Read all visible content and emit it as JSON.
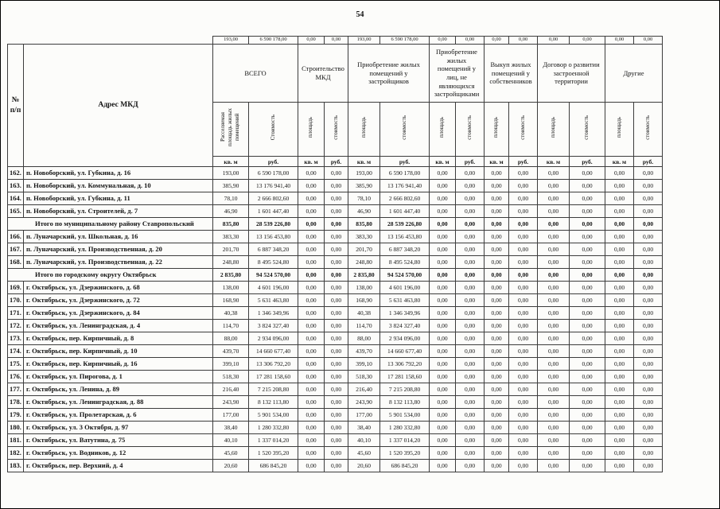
{
  "page": {
    "number": "54"
  },
  "table": {
    "header": {
      "col_num": "№\nп/п",
      "col_address": "Адрес МКД",
      "groups": [
        {
          "label": "ВСЕГО",
          "sub": [
            "Расселяемая площадь жилых помещений",
            "Стоимость"
          ]
        },
        {
          "label": "Строительство МКД",
          "sub": [
            "площадь",
            "стоимость"
          ]
        },
        {
          "label": "Приобретение жилых помещений у застройщиков",
          "sub": [
            "площадь",
            "стоимость"
          ]
        },
        {
          "label": "Приобретение жилых помещений у лиц, не являющихся застройщиками",
          "sub": [
            "площадь",
            "стоимость"
          ]
        },
        {
          "label": "Выкуп жилых помещений у собственников",
          "sub": [
            "площадь",
            "стоимость"
          ]
        },
        {
          "label": "Договор о развитии застроенной территории",
          "sub": [
            "площадь",
            "стоимость"
          ]
        },
        {
          "label": "Другие",
          "sub": [
            "площадь",
            "стоимость"
          ]
        }
      ],
      "units": {
        "area": "кв. м",
        "cost": "руб."
      }
    },
    "carryover_row": {
      "values": [
        "193,00",
        "6 590 178,00",
        "0,00",
        "0,00",
        "193,00",
        "6 590 178,00",
        "0,00",
        "0,00",
        "0,00",
        "0,00",
        "0,00",
        "0,00",
        "0,00",
        "0,00"
      ]
    },
    "rows": [
      {
        "kind": "data",
        "num": "162.",
        "address": "п. Новоборский, ул. Губкина, д. 16",
        "values": [
          "193,00",
          "6 590 178,00",
          "0,00",
          "0,00",
          "193,00",
          "6 590 178,00",
          "0,00",
          "0,00",
          "0,00",
          "0,00",
          "0,00",
          "0,00",
          "0,00",
          "0,00"
        ]
      },
      {
        "kind": "data",
        "num": "163.",
        "address": "п. Новоборский, ул. Коммунальная, д. 10",
        "values": [
          "385,90",
          "13 176 941,40",
          "0,00",
          "0,00",
          "385,90",
          "13 176 941,40",
          "0,00",
          "0,00",
          "0,00",
          "0,00",
          "0,00",
          "0,00",
          "0,00",
          "0,00"
        ]
      },
      {
        "kind": "data",
        "num": "164.",
        "address": "п. Новоборский, ул. Губкина, д. 11",
        "values": [
          "78,10",
          "2 666 802,60",
          "0,00",
          "0,00",
          "78,10",
          "2 666 802,60",
          "0,00",
          "0,00",
          "0,00",
          "0,00",
          "0,00",
          "0,00",
          "0,00",
          "0,00"
        ]
      },
      {
        "kind": "data",
        "num": "165.",
        "address": "п. Новоборский, ул. Строителей, д. 7",
        "values": [
          "46,90",
          "1 601 447,40",
          "0,00",
          "0,00",
          "46,90",
          "1 601 447,40",
          "0,00",
          "0,00",
          "0,00",
          "0,00",
          "0,00",
          "0,00",
          "0,00",
          "0,00"
        ]
      },
      {
        "kind": "total",
        "label": "Итого по муниципальному району Ставропольский",
        "values": [
          "835,80",
          "28 539 226,80",
          "0,00",
          "0,00",
          "835,80",
          "28 539 226,80",
          "0,00",
          "0,00",
          "0,00",
          "0,00",
          "0,00",
          "0,00",
          "0,00",
          "0,00"
        ]
      },
      {
        "kind": "data",
        "num": "166.",
        "address": "п. Луначарский, ул. Школьная, д. 16",
        "values": [
          "383,30",
          "13 156 453,80",
          "0,00",
          "0,00",
          "383,30",
          "13 156 453,80",
          "0,00",
          "0,00",
          "0,00",
          "0,00",
          "0,00",
          "0,00",
          "0,00",
          "0,00"
        ]
      },
      {
        "kind": "data",
        "num": "167.",
        "address": "п. Луначарский, ул. Производственная, д. 20",
        "values": [
          "201,70",
          "6 887 348,20",
          "0,00",
          "0,00",
          "201,70",
          "6 887 348,20",
          "0,00",
          "0,00",
          "0,00",
          "0,00",
          "0,00",
          "0,00",
          "0,00",
          "0,00"
        ]
      },
      {
        "kind": "data",
        "num": "168.",
        "address": "п. Луначарский, ул. Производственная, д. 22",
        "values": [
          "248,80",
          "8 495 524,80",
          "0,00",
          "0,00",
          "248,80",
          "8 495 524,80",
          "0,00",
          "0,00",
          "0,00",
          "0,00",
          "0,00",
          "0,00",
          "0,00",
          "0,00"
        ]
      },
      {
        "kind": "total",
        "label": "Итого по городскому округу Октябрьск",
        "values": [
          "2 835,80",
          "94 524 570,00",
          "0,00",
          "0,00",
          "2 835,80",
          "94 524 570,00",
          "0,00",
          "0,00",
          "0,00",
          "0,00",
          "0,00",
          "0,00",
          "0,00",
          "0,00"
        ]
      },
      {
        "kind": "data",
        "num": "169.",
        "address": "г. Октябрьск, ул. Дзержинского, д. 68",
        "values": [
          "138,00",
          "4 601 196,00",
          "0,00",
          "0,00",
          "138,00",
          "4 601 196,00",
          "0,00",
          "0,00",
          "0,00",
          "0,00",
          "0,00",
          "0,00",
          "0,00",
          "0,00"
        ]
      },
      {
        "kind": "data",
        "num": "170.",
        "address": "г. Октябрьск, ул. Дзержинского, д. 72",
        "values": [
          "168,90",
          "5 631 463,80",
          "0,00",
          "0,00",
          "168,90",
          "5 631 463,80",
          "0,00",
          "0,00",
          "0,00",
          "0,00",
          "0,00",
          "0,00",
          "0,00",
          "0,00"
        ]
      },
      {
        "kind": "data",
        "num": "171.",
        "address": "г. Октябрьск, ул. Дзержинского, д. 84",
        "values": [
          "40,38",
          "1 346 349,96",
          "0,00",
          "0,00",
          "40,38",
          "1 346 349,96",
          "0,00",
          "0,00",
          "0,00",
          "0,00",
          "0,00",
          "0,00",
          "0,00",
          "0,00"
        ]
      },
      {
        "kind": "data",
        "num": "172.",
        "address": "г. Октябрьск, ул. Ленинградская, д. 4",
        "values": [
          "114,70",
          "3 824 327,40",
          "0,00",
          "0,00",
          "114,70",
          "3 824 327,40",
          "0,00",
          "0,00",
          "0,00",
          "0,00",
          "0,00",
          "0,00",
          "0,00",
          "0,00"
        ]
      },
      {
        "kind": "data",
        "num": "173.",
        "address": "г. Октябрьск, пер. Кирпичный, д. 8",
        "values": [
          "88,00",
          "2 934 096,00",
          "0,00",
          "0,00",
          "88,00",
          "2 934 096,00",
          "0,00",
          "0,00",
          "0,00",
          "0,00",
          "0,00",
          "0,00",
          "0,00",
          "0,00"
        ]
      },
      {
        "kind": "data",
        "num": "174.",
        "address": "г. Октябрьск, пер. Кирпичный, д. 10",
        "values": [
          "439,70",
          "14 660 677,40",
          "0,00",
          "0,00",
          "439,70",
          "14 660 677,40",
          "0,00",
          "0,00",
          "0,00",
          "0,00",
          "0,00",
          "0,00",
          "0,00",
          "0,00"
        ]
      },
      {
        "kind": "data",
        "num": "175.",
        "address": "г. Октябрьск, пер. Кирпичный, д. 16",
        "values": [
          "399,10",
          "13 306 792,20",
          "0,00",
          "0,00",
          "399,10",
          "13 306 792,20",
          "0,00",
          "0,00",
          "0,00",
          "0,00",
          "0,00",
          "0,00",
          "0,00",
          "0,00"
        ]
      },
      {
        "kind": "data",
        "num": "176.",
        "address": "г. Октябрьск, ул. Пирогова, д. 1",
        "values": [
          "518,30",
          "17 281 158,60",
          "0,00",
          "0,00",
          "518,30",
          "17 281 158,60",
          "0,00",
          "0,00",
          "0,00",
          "0,00",
          "0,00",
          "0,00",
          "0,00",
          "0,00"
        ]
      },
      {
        "kind": "data",
        "num": "177.",
        "address": "г. Октябрьск, ул. Ленина, д. 89",
        "values": [
          "216,40",
          "7 215 208,80",
          "0,00",
          "0,00",
          "216,40",
          "7 215 208,80",
          "0,00",
          "0,00",
          "0,00",
          "0,00",
          "0,00",
          "0,00",
          "0,00",
          "0,00"
        ]
      },
      {
        "kind": "data",
        "num": "178.",
        "address": "г. Октябрьск, ул. Ленинградская, д. 88",
        "values": [
          "243,90",
          "8 132 113,80",
          "0,00",
          "0,00",
          "243,90",
          "8 132 113,80",
          "0,00",
          "0,00",
          "0,00",
          "0,00",
          "0,00",
          "0,00",
          "0,00",
          "0,00"
        ]
      },
      {
        "kind": "data",
        "num": "179.",
        "address": "г. Октябрьск, ул. Пролетарская, д. 6",
        "values": [
          "177,00",
          "5 901 534,00",
          "0,00",
          "0,00",
          "177,00",
          "5 901 534,00",
          "0,00",
          "0,00",
          "0,00",
          "0,00",
          "0,00",
          "0,00",
          "0,00",
          "0,00"
        ]
      },
      {
        "kind": "data",
        "num": "180.",
        "address": "г. Октябрьск, ул. 3 Октября, д. 97",
        "values": [
          "38,40",
          "1 280 332,80",
          "0,00",
          "0,00",
          "38,40",
          "1 280 332,80",
          "0,00",
          "0,00",
          "0,00",
          "0,00",
          "0,00",
          "0,00",
          "0,00",
          "0,00"
        ]
      },
      {
        "kind": "data",
        "num": "181.",
        "address": "г. Октябрьск, ул. Ватутина, д. 75",
        "values": [
          "40,10",
          "1 337 014,20",
          "0,00",
          "0,00",
          "40,10",
          "1 337 014,20",
          "0,00",
          "0,00",
          "0,00",
          "0,00",
          "0,00",
          "0,00",
          "0,00",
          "0,00"
        ]
      },
      {
        "kind": "data",
        "num": "182.",
        "address": "г. Октябрьск, ул. Водников, д. 12",
        "values": [
          "45,60",
          "1 520 395,20",
          "0,00",
          "0,00",
          "45,60",
          "1 520 395,20",
          "0,00",
          "0,00",
          "0,00",
          "0,00",
          "0,00",
          "0,00",
          "0,00",
          "0,00"
        ]
      },
      {
        "kind": "data",
        "num": "183.",
        "address": "г. Октябрьск, пер. Верхний, д. 4",
        "values": [
          "20,60",
          "686 845,20",
          "0,00",
          "0,00",
          "20,60",
          "686 845,20",
          "0,00",
          "0,00",
          "0,00",
          "0,00",
          "0,00",
          "0,00",
          "0,00",
          "0,00"
        ]
      }
    ]
  }
}
